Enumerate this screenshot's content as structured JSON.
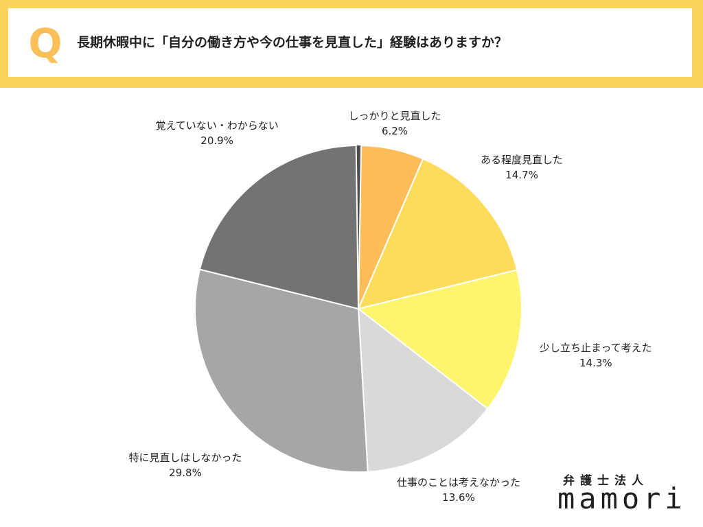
{
  "question": {
    "mark": "Q",
    "text": "長期休暇中に「自分の働き方や今の仕事を見直した」経験はありますか？"
  },
  "logo": {
    "top": "弁護士法人",
    "main": "mamori"
  },
  "chart_data": {
    "type": "pie",
    "title": "",
    "slices": [
      {
        "label": "しっかりと見直した",
        "value": 6.2,
        "display": "6.2%",
        "color": "#fdbe5a"
      },
      {
        "label": "ある程度見直した",
        "value": 14.7,
        "display": "14.7%",
        "color": "#fddc5c"
      },
      {
        "label": "少し立ち止まって考えた",
        "value": 14.3,
        "display": "14.3%",
        "color": "#fef56e"
      },
      {
        "label": "仕事のことは考えなかった",
        "value": 13.6,
        "display": "13.6%",
        "color": "#d9d9d9"
      },
      {
        "label": "特に見直しはしなかった",
        "value": 29.8,
        "display": "29.8%",
        "color": "#a6a6a6"
      },
      {
        "label": "覚えていない・わからない",
        "value": 20.9,
        "display": "20.9%",
        "color": "#737373"
      }
    ],
    "start_angle_deg": 1,
    "direction": "clockwise",
    "colors": {
      "band": "#fcd35a",
      "q_mark": "#f9c05a",
      "slice_border": "#ffffff",
      "remainder": "#4d4d4d"
    }
  }
}
